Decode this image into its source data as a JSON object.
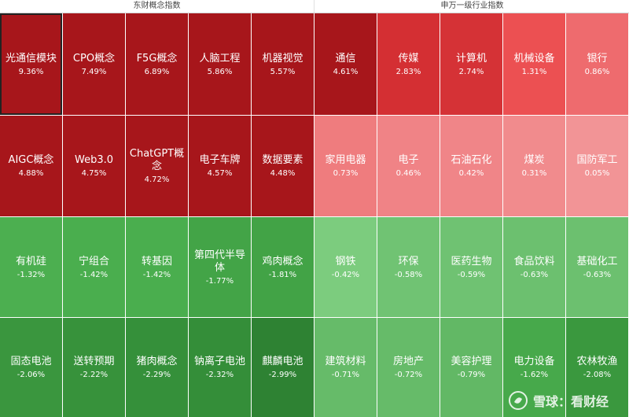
{
  "headers": {
    "left": "东财概念指数",
    "right": "申万一级行业指数"
  },
  "left_tiles": [
    {
      "name": "光通信模块",
      "value": "9.36%",
      "color": "#a7161b",
      "selected": true
    },
    {
      "name": "CPO概念",
      "value": "7.49%",
      "color": "#a7161b"
    },
    {
      "name": "F5G概念",
      "value": "6.89%",
      "color": "#a7161b"
    },
    {
      "name": "人脑工程",
      "value": "5.86%",
      "color": "#a7161b"
    },
    {
      "name": "机器视觉",
      "value": "5.57%",
      "color": "#a7161b"
    },
    {
      "name": "AIGC概念",
      "value": "4.88%",
      "color": "#a7161b"
    },
    {
      "name": "Web3.0",
      "value": "4.75%",
      "color": "#a7161b"
    },
    {
      "name": "ChatGPT概念",
      "value": "4.72%",
      "color": "#a7161b"
    },
    {
      "name": "电子车牌",
      "value": "4.57%",
      "color": "#a7161b"
    },
    {
      "name": "数据要素",
      "value": "4.48%",
      "color": "#a7161b"
    },
    {
      "name": "有机硅",
      "value": "-1.32%",
      "color": "#4caf50"
    },
    {
      "name": "宁组合",
      "value": "-1.42%",
      "color": "#4aae4e"
    },
    {
      "name": "转基因",
      "value": "-1.42%",
      "color": "#4aae4e"
    },
    {
      "name": "第四代半导体",
      "value": "-1.77%",
      "color": "#43a447"
    },
    {
      "name": "鸡肉概念",
      "value": "-1.81%",
      "color": "#42a346"
    },
    {
      "name": "固态电池",
      "value": "-2.06%",
      "color": "#3a963e"
    },
    {
      "name": "送转预期",
      "value": "-2.22%",
      "color": "#37923b"
    },
    {
      "name": "猪肉概念",
      "value": "-2.29%",
      "color": "#35903a"
    },
    {
      "name": "钠离子电池",
      "value": "-2.32%",
      "color": "#348e39"
    },
    {
      "name": "麒麟电池",
      "value": "-2.99%",
      "color": "#2e8233"
    }
  ],
  "right_tiles": [
    {
      "name": "通信",
      "value": "4.61%",
      "color": "#a7161b"
    },
    {
      "name": "传媒",
      "value": "2.83%",
      "color": "#d42f33"
    },
    {
      "name": "计算机",
      "value": "2.74%",
      "color": "#d53236"
    },
    {
      "name": "机械设备",
      "value": "1.31%",
      "color": "#ec5052"
    },
    {
      "name": "银行",
      "value": "0.86%",
      "color": "#ee6b6e"
    },
    {
      "name": "家用电器",
      "value": "0.73%",
      "color": "#ef7c7e"
    },
    {
      "name": "电子",
      "value": "0.46%",
      "color": "#f08386"
    },
    {
      "name": "石油石化",
      "value": "0.42%",
      "color": "#f08588"
    },
    {
      "name": "煤炭",
      "value": "0.31%",
      "color": "#f18b8d"
    },
    {
      "name": "国防军工",
      "value": "0.05%",
      "color": "#f29496"
    },
    {
      "name": "钢铁",
      "value": "-0.42%",
      "color": "#7ccc7e"
    },
    {
      "name": "环保",
      "value": "-0.58%",
      "color": "#70c373"
    },
    {
      "name": "医药生物",
      "value": "-0.59%",
      "color": "#6fc272"
    },
    {
      "name": "食品饮料",
      "value": "-0.63%",
      "color": "#6cc06f"
    },
    {
      "name": "基础化工",
      "value": "-0.63%",
      "color": "#6cc06f"
    },
    {
      "name": "建筑材料",
      "value": "-0.71%",
      "color": "#66bb69"
    },
    {
      "name": "房地产",
      "value": "-0.72%",
      "color": "#66bb69"
    },
    {
      "name": "美容护理",
      "value": "-0.79%",
      "color": "#62b865"
    },
    {
      "name": "电力设备",
      "value": "-1.62%",
      "color": "#47a94b"
    },
    {
      "name": "农林牧渔",
      "value": "-2.08%",
      "color": "#3a983e"
    }
  ],
  "watermark": {
    "text": "雪球：看财经",
    "icon": "snowball-logo-icon"
  }
}
